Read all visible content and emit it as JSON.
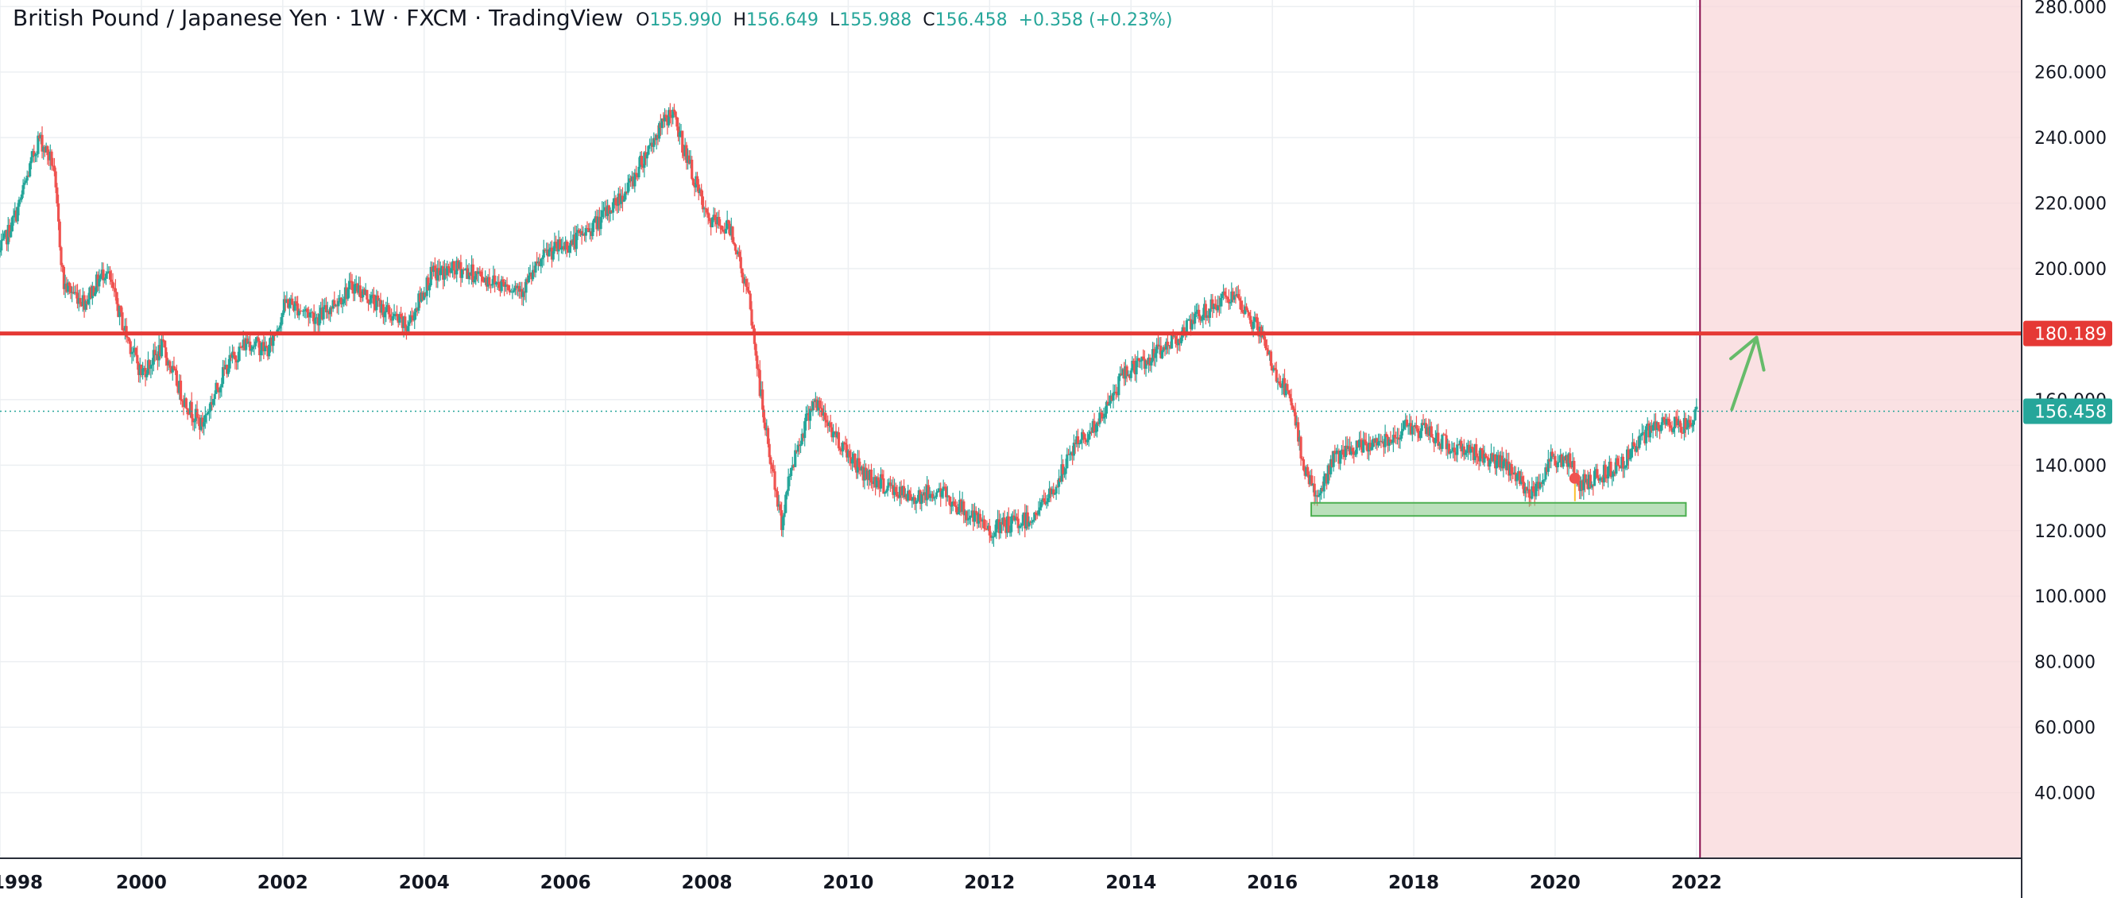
{
  "header": {
    "title": "British Pound / Japanese Yen · 1W · FXCM · TradingView",
    "open_label": "O",
    "open": "155.990",
    "high_label": "H",
    "high": "156.649",
    "low_label": "L",
    "low": "155.988",
    "close_label": "C",
    "close": "156.458",
    "change": "+0.358 (+0.23%)"
  },
  "chart_data": {
    "type": "candlestick",
    "symbol": "GBPJPY",
    "interval": "1W",
    "source": "FXCM",
    "y_axis": {
      "min": 20,
      "max": 282,
      "ticks": [
        40,
        60,
        80,
        100,
        120,
        140,
        160,
        180,
        200,
        220,
        240,
        260,
        280
      ],
      "tick_labels": [
        "40.000",
        "60.000",
        "80.000",
        "100.000",
        "120.000",
        "140.000",
        "160.000",
        "180.000",
        "200.000",
        "220.000",
        "240.000",
        "260.000",
        "280.000"
      ],
      "position": "right"
    },
    "x_axis": {
      "min": 1998.0,
      "max": 2026.6,
      "ticks": [
        1998,
        2000,
        2002,
        2004,
        2006,
        2008,
        2010,
        2012,
        2014,
        2016,
        2018,
        2020,
        2022
      ],
      "tick_labels": [
        "1998",
        "2000",
        "2002",
        "2004",
        "2006",
        "2008",
        "2010",
        "2012",
        "2014",
        "2016",
        "2018",
        "2020",
        "2022"
      ]
    },
    "grid": true,
    "colors": {
      "up": "#26a69a",
      "down": "#ef5350",
      "resistance": "#e53935",
      "support": "#81c784",
      "arrow": "#66bb6a",
      "future_zone": "#f8d7da",
      "vline": "#880e4f"
    },
    "price_path": [
      [
        1998.0,
        205
      ],
      [
        1998.25,
        218
      ],
      [
        1998.55,
        240
      ],
      [
        1998.75,
        232
      ],
      [
        1998.9,
        195
      ],
      [
        1999.2,
        190
      ],
      [
        1999.5,
        200
      ],
      [
        1999.75,
        182
      ],
      [
        2000.0,
        168
      ],
      [
        2000.3,
        176
      ],
      [
        2000.6,
        160
      ],
      [
        2000.85,
        152
      ],
      [
        2001.2,
        170
      ],
      [
        2001.5,
        178
      ],
      [
        2001.8,
        175
      ],
      [
        2002.05,
        190
      ],
      [
        2002.5,
        185
      ],
      [
        2003.0,
        195
      ],
      [
        2003.4,
        188
      ],
      [
        2003.75,
        182
      ],
      [
        2004.1,
        198
      ],
      [
        2004.5,
        200
      ],
      [
        2005.0,
        196
      ],
      [
        2005.4,
        194
      ],
      [
        2005.75,
        205
      ],
      [
        2006.1,
        208
      ],
      [
        2006.5,
        215
      ],
      [
        2006.9,
        225
      ],
      [
        2007.2,
        238
      ],
      [
        2007.5,
        248
      ],
      [
        2007.75,
        232
      ],
      [
        2008.0,
        215
      ],
      [
        2008.35,
        212
      ],
      [
        2008.6,
        190
      ],
      [
        2008.8,
        155
      ],
      [
        2009.05,
        122
      ],
      [
        2009.2,
        140
      ],
      [
        2009.5,
        160
      ],
      [
        2009.85,
        148
      ],
      [
        2010.2,
        138
      ],
      [
        2010.5,
        134
      ],
      [
        2010.85,
        130
      ],
      [
        2011.3,
        132
      ],
      [
        2011.75,
        124
      ],
      [
        2012.0,
        120
      ],
      [
        2012.3,
        122
      ],
      [
        2012.6,
        124
      ],
      [
        2012.9,
        132
      ],
      [
        2013.2,
        146
      ],
      [
        2013.55,
        153
      ],
      [
        2013.9,
        168
      ],
      [
        2014.3,
        173
      ],
      [
        2014.7,
        180
      ],
      [
        2015.0,
        186
      ],
      [
        2015.4,
        192
      ],
      [
        2015.8,
        182
      ],
      [
        2016.0,
        170
      ],
      [
        2016.25,
        160
      ],
      [
        2016.45,
        140
      ],
      [
        2016.65,
        129
      ],
      [
        2016.85,
        142
      ],
      [
        2017.2,
        145
      ],
      [
        2017.6,
        148
      ],
      [
        2017.95,
        152
      ],
      [
        2018.2,
        150
      ],
      [
        2018.5,
        146
      ],
      [
        2018.85,
        144
      ],
      [
        2019.1,
        142
      ],
      [
        2019.4,
        138
      ],
      [
        2019.65,
        131
      ],
      [
        2019.95,
        142
      ],
      [
        2020.2,
        141
      ],
      [
        2020.35,
        134
      ],
      [
        2020.65,
        137
      ],
      [
        2021.0,
        142
      ],
      [
        2021.3,
        150
      ],
      [
        2021.6,
        153
      ],
      [
        2021.85,
        152
      ],
      [
        2022.0,
        156.458
      ]
    ],
    "annotations": {
      "resistance_line": {
        "price": 180.189,
        "label": "180.189"
      },
      "last_price": {
        "price": 156.458,
        "label": "156.458"
      },
      "support_zone": {
        "x_from": 2016.55,
        "x_to": 2021.85,
        "price_from": 124.5,
        "price_to": 128.5
      },
      "future_zone_start": 2022.05,
      "arrow": {
        "from": [
          2022.5,
          157
        ],
        "to": [
          2022.85,
          179
        ]
      }
    }
  }
}
